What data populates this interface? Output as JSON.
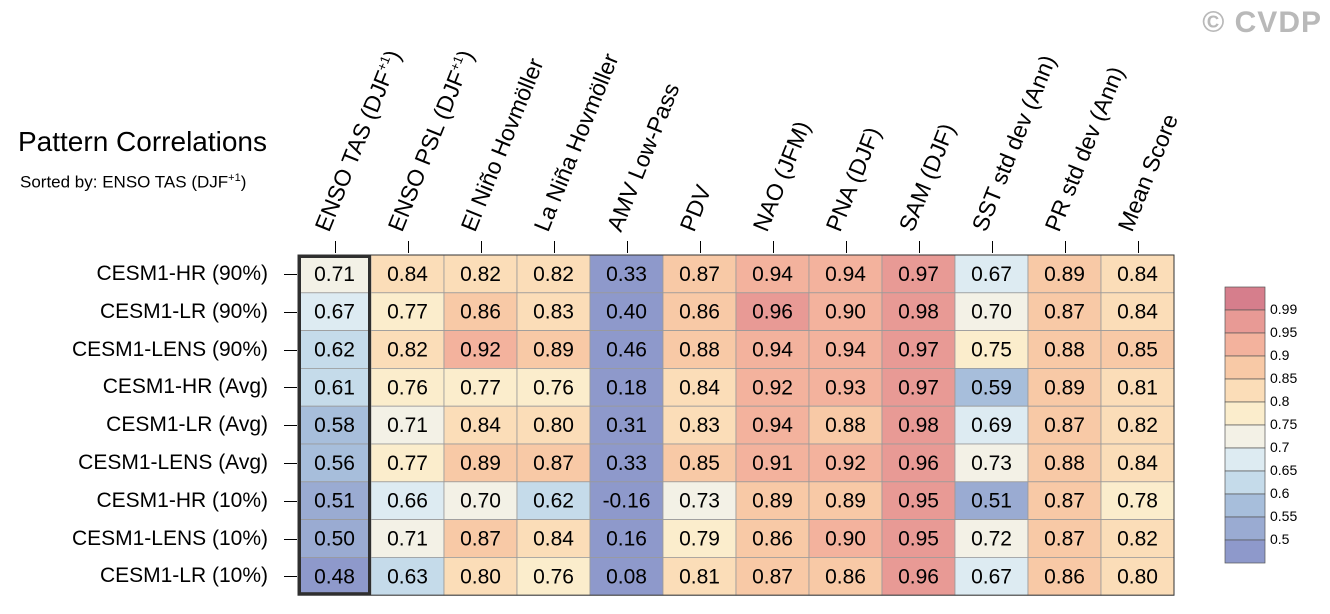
{
  "watermark": "© CVDP",
  "title": "Pattern Correlations",
  "subtitle": {
    "prefix": "Sorted by: ENSO TAS (DJF",
    "sup": "+1",
    "suffix": ")"
  },
  "chart_data": {
    "type": "heatmap",
    "title": "Pattern Correlations",
    "subtitle": "Sorted by: ENSO TAS (DJF+1)",
    "columns": [
      {
        "label": "ENSO TAS (DJF",
        "sup": "+1",
        "suffix": ")"
      },
      {
        "label": "ENSO PSL (DJF",
        "sup": "+1",
        "suffix": ")"
      },
      {
        "label": "El Niño Hovmöller",
        "sup": "",
        "suffix": ""
      },
      {
        "label": "La Niña Hovmöller",
        "sup": "",
        "suffix": ""
      },
      {
        "label": "AMV Low-Pass",
        "sup": "",
        "suffix": ""
      },
      {
        "label": "PDV",
        "sup": "",
        "suffix": ""
      },
      {
        "label": "NAO (JFM)",
        "sup": "",
        "suffix": ""
      },
      {
        "label": "PNA (DJF)",
        "sup": "",
        "suffix": ""
      },
      {
        "label": "SAM (DJF)",
        "sup": "",
        "suffix": ""
      },
      {
        "label": "SST std dev (Ann)",
        "sup": "",
        "suffix": ""
      },
      {
        "label": "PR std dev (Ann)",
        "sup": "",
        "suffix": ""
      },
      {
        "label": "Mean Score",
        "sup": "",
        "suffix": ""
      }
    ],
    "rows": [
      "CESM1-HR (90%)",
      "CESM1-LR (90%)",
      "CESM1-LENS (90%)",
      "CESM1-HR (Avg)",
      "CESM1-LR (Avg)",
      "CESM1-LENS (Avg)",
      "CESM1-HR (10%)",
      "CESM1-LENS (10%)",
      "CESM1-LR (10%)"
    ],
    "values": [
      [
        "0.71",
        "0.84",
        "0.82",
        "0.82",
        "0.33",
        "0.87",
        "0.94",
        "0.94",
        "0.97",
        "0.67",
        "0.89",
        "0.84"
      ],
      [
        "0.67",
        "0.77",
        "0.86",
        "0.83",
        "0.40",
        "0.86",
        "0.96",
        "0.90",
        "0.98",
        "0.70",
        "0.87",
        "0.84"
      ],
      [
        "0.62",
        "0.82",
        "0.92",
        "0.89",
        "0.46",
        "0.88",
        "0.94",
        "0.94",
        "0.97",
        "0.75",
        "0.88",
        "0.85"
      ],
      [
        "0.61",
        "0.76",
        "0.77",
        "0.76",
        "0.18",
        "0.84",
        "0.92",
        "0.93",
        "0.97",
        "0.59",
        "0.89",
        "0.81"
      ],
      [
        "0.58",
        "0.71",
        "0.84",
        "0.80",
        "0.31",
        "0.83",
        "0.94",
        "0.88",
        "0.98",
        "0.69",
        "0.87",
        "0.82"
      ],
      [
        "0.56",
        "0.77",
        "0.89",
        "0.87",
        "0.33",
        "0.85",
        "0.91",
        "0.92",
        "0.96",
        "0.73",
        "0.88",
        "0.84"
      ],
      [
        "0.51",
        "0.66",
        "0.70",
        "0.62",
        "-0.16",
        "0.73",
        "0.89",
        "0.89",
        "0.95",
        "0.51",
        "0.87",
        "0.78"
      ],
      [
        "0.50",
        "0.71",
        "0.87",
        "0.84",
        "0.16",
        "0.79",
        "0.86",
        "0.90",
        "0.95",
        "0.72",
        "0.87",
        "0.82"
      ],
      [
        "0.48",
        "0.63",
        "0.80",
        "0.76",
        "0.08",
        "0.81",
        "0.87",
        "0.86",
        "0.96",
        "0.67",
        "0.86",
        "0.80"
      ]
    ],
    "highlighted_column": "ENSO TAS (DJF+1)",
    "colorbar": {
      "labels": [
        "0.99",
        "0.95",
        "0.9",
        "0.85",
        "0.8",
        "0.75",
        "0.7",
        "0.65",
        "0.6",
        "0.55",
        "0.5"
      ],
      "colors": [
        "#d67e8c",
        "#e89a95",
        "#f3b29d",
        "#f8c9a6",
        "#fbddb8",
        "#fbedcc",
        "#f3f1e6",
        "#ddebf2",
        "#c5dbea",
        "#a7bedb",
        "#9aabd2",
        "#8e99cb"
      ]
    }
  }
}
